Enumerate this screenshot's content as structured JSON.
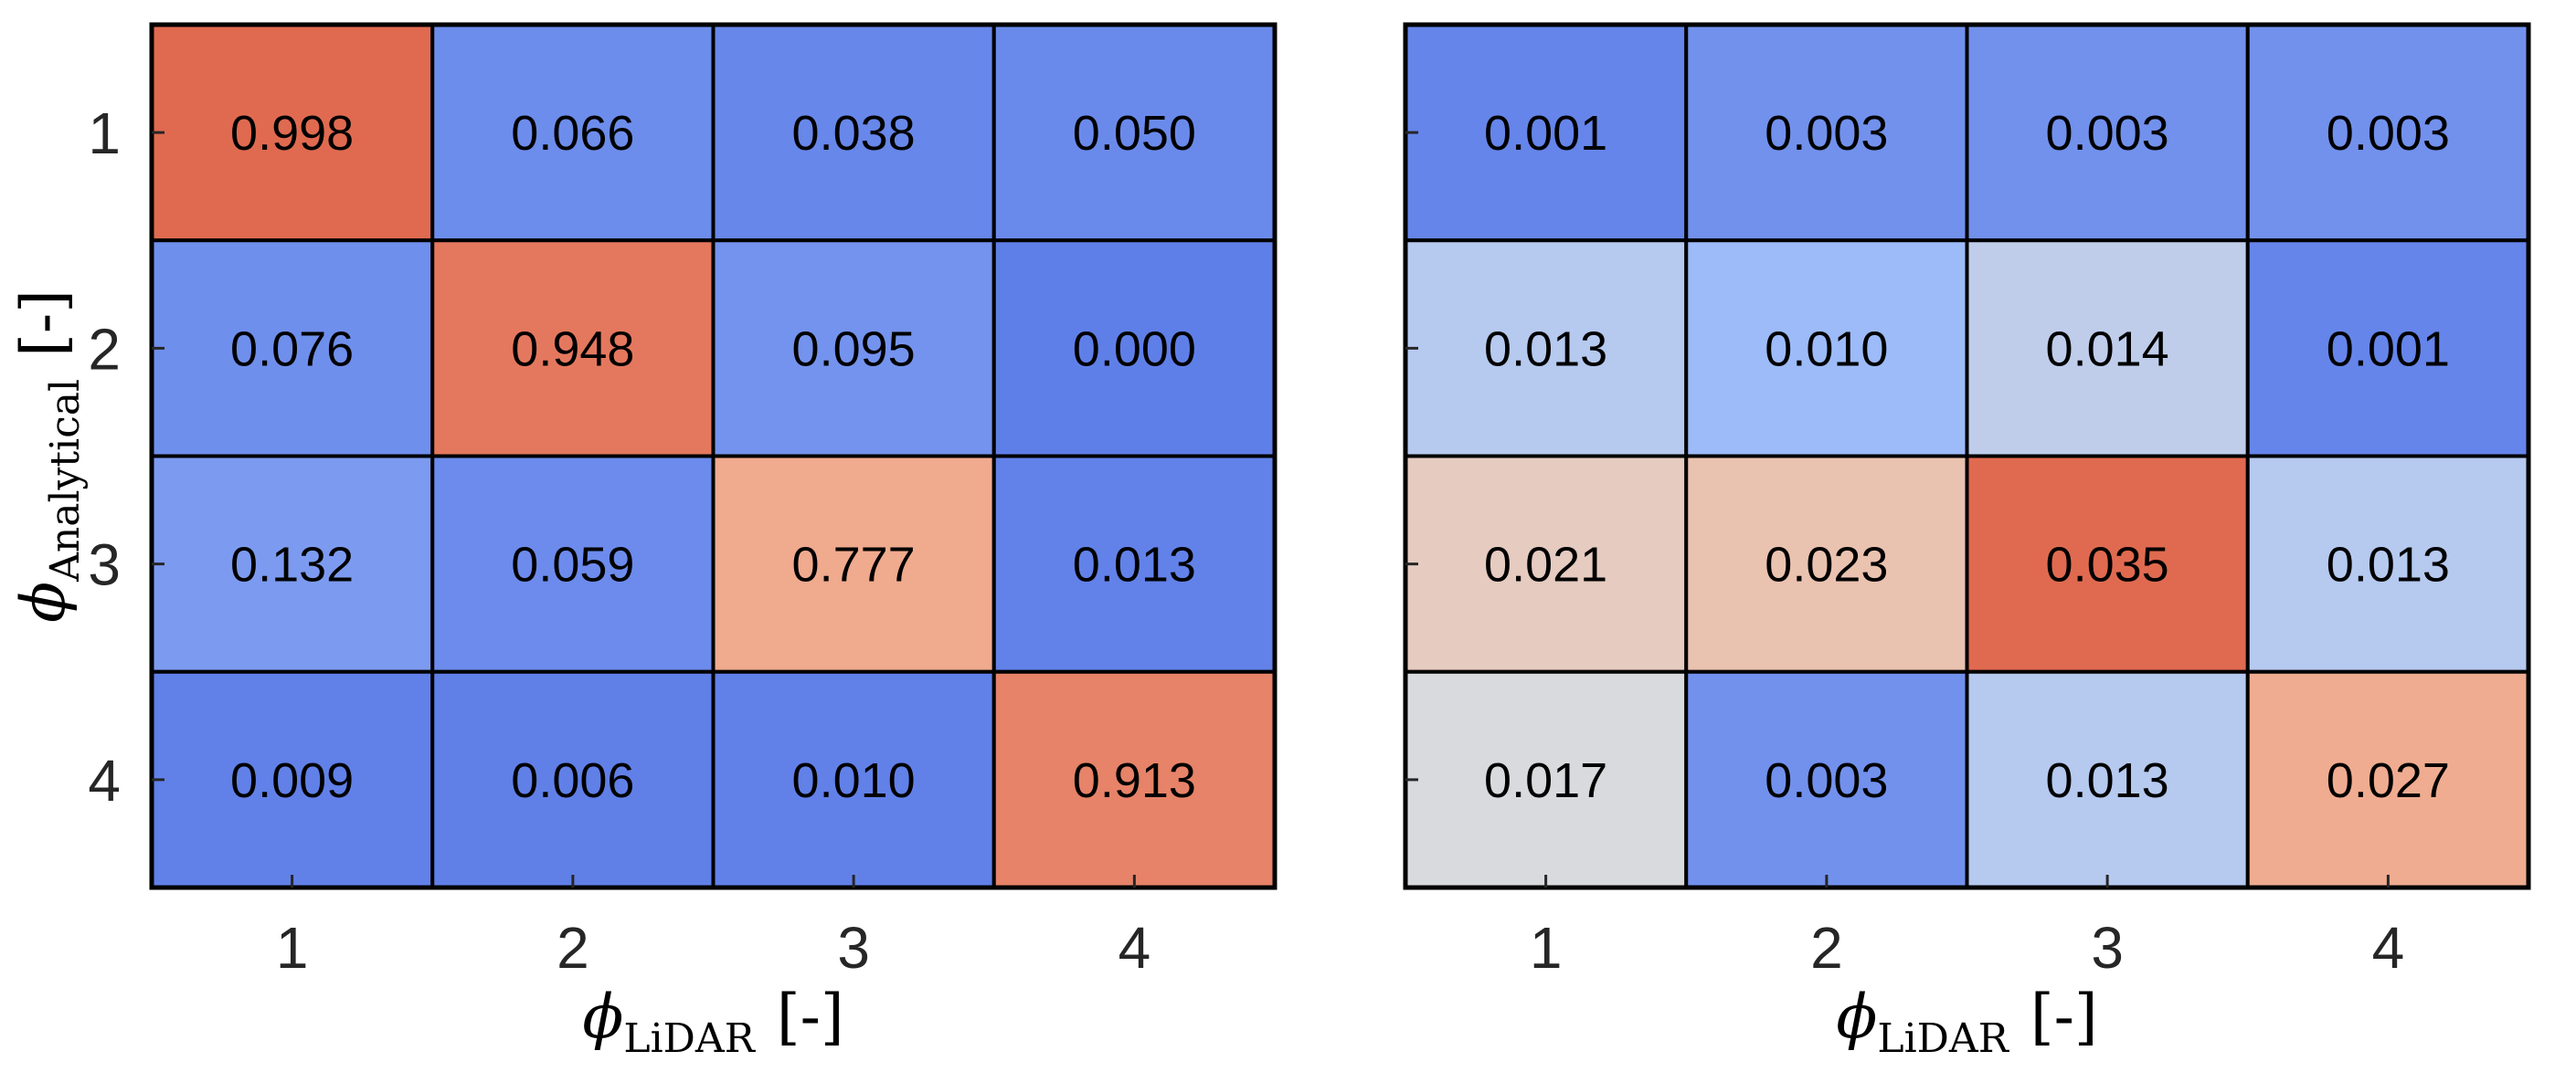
{
  "chart_data": [
    {
      "type": "heatmap",
      "title": "",
      "x_ticks": [
        "1",
        "2",
        "3",
        "4"
      ],
      "y_ticks": [
        "1",
        "2",
        "3",
        "4"
      ],
      "xlabel": {
        "symbol": "ϕ",
        "subscript": "LiDAR",
        "unit": "[-]"
      },
      "ylabel": {
        "symbol": "ϕ",
        "subscript": "Analytical",
        "unit": "[-]"
      },
      "values": [
        [
          0.998,
          0.066,
          0.038,
          0.05
        ],
        [
          0.076,
          0.948,
          0.095,
          0.0
        ],
        [
          0.132,
          0.059,
          0.777,
          0.013
        ],
        [
          0.009,
          0.006,
          0.01,
          0.913
        ]
      ],
      "labels": [
        [
          "0.998",
          "0.066",
          "0.038",
          "0.050"
        ],
        [
          "0.076",
          "0.948",
          "0.095",
          "0.000"
        ],
        [
          "0.132",
          "0.059",
          "0.777",
          "0.013"
        ],
        [
          "0.009",
          "0.006",
          "0.010",
          "0.913"
        ]
      ],
      "vmin": 0.0,
      "vmax": 0.998,
      "colormap": "coolwarm",
      "grid": true
    },
    {
      "type": "heatmap",
      "title": "",
      "x_ticks": [
        "1",
        "2",
        "3",
        "4"
      ],
      "y_ticks": [],
      "xlabel": {
        "symbol": "ϕ",
        "subscript": "LiDAR",
        "unit": "[-]"
      },
      "ylabel": null,
      "values": [
        [
          0.001,
          0.003,
          0.003,
          0.003
        ],
        [
          0.013,
          0.01,
          0.014,
          0.001
        ],
        [
          0.021,
          0.023,
          0.035,
          0.013
        ],
        [
          0.017,
          0.003,
          0.013,
          0.027
        ]
      ],
      "labels": [
        [
          "0.001",
          "0.003",
          "0.003",
          "0.003"
        ],
        [
          "0.013",
          "0.010",
          "0.014",
          "0.001"
        ],
        [
          "0.021",
          "0.023",
          "0.035",
          "0.013"
        ],
        [
          "0.017",
          "0.003",
          "0.013",
          "0.027"
        ]
      ],
      "vmin": 0.0,
      "vmax": 0.035,
      "colormap": "coolwarm",
      "grid": true
    }
  ],
  "colors": {
    "border": "#000000",
    "tick_text": "#262626",
    "cold": "#5f7fe8",
    "neutral": "#dddcdc",
    "hot": "#e06a50"
  }
}
